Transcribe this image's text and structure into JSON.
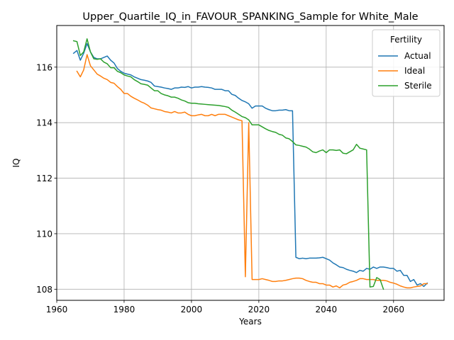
{
  "chart_data": {
    "type": "line",
    "title": "Upper_Quartile_IQ_in_FAVOUR_SPANKING_Sample for White_Male",
    "xlabel": "Years",
    "ylabel": "IQ",
    "xlim": [
      1960,
      2075
    ],
    "ylim": [
      107.6,
      117.5
    ],
    "xticks": [
      1960,
      1980,
      2000,
      2020,
      2040,
      2060
    ],
    "yticks": [
      108,
      110,
      112,
      114,
      116
    ],
    "grid": true,
    "legend": {
      "title": "Fertility",
      "placement": "top-right"
    },
    "series": [
      {
        "name": "Actual",
        "color": "#1f77b4",
        "points": [
          [
            1965,
            116.5
          ],
          [
            1966,
            116.6
          ],
          [
            1967,
            116.25
          ],
          [
            1968,
            116.5
          ],
          [
            1969,
            116.85
          ],
          [
            1970,
            116.55
          ],
          [
            1971,
            116.35
          ],
          [
            1972,
            116.3
          ],
          [
            1973,
            116.3
          ],
          [
            1974,
            116.35
          ],
          [
            1975,
            116.4
          ],
          [
            1976,
            116.25
          ],
          [
            1977,
            116.15
          ],
          [
            1978,
            115.95
          ],
          [
            1979,
            115.85
          ],
          [
            1980,
            115.78
          ],
          [
            1981,
            115.75
          ],
          [
            1982,
            115.72
          ],
          [
            1983,
            115.65
          ],
          [
            1984,
            115.6
          ],
          [
            1985,
            115.55
          ],
          [
            1986,
            115.53
          ],
          [
            1987,
            115.5
          ],
          [
            1988,
            115.45
          ],
          [
            1989,
            115.32
          ],
          [
            1990,
            115.3
          ],
          [
            1991,
            115.28
          ],
          [
            1992,
            115.25
          ],
          [
            1993,
            115.23
          ],
          [
            1994,
            115.2
          ],
          [
            1995,
            115.25
          ],
          [
            1996,
            115.25
          ],
          [
            1997,
            115.28
          ],
          [
            1998,
            115.27
          ],
          [
            1999,
            115.3
          ],
          [
            2000,
            115.25
          ],
          [
            2001,
            115.28
          ],
          [
            2002,
            115.28
          ],
          [
            2003,
            115.3
          ],
          [
            2004,
            115.28
          ],
          [
            2005,
            115.27
          ],
          [
            2006,
            115.25
          ],
          [
            2007,
            115.2
          ],
          [
            2008,
            115.2
          ],
          [
            2009,
            115.2
          ],
          [
            2010,
            115.15
          ],
          [
            2011,
            115.15
          ],
          [
            2012,
            115.02
          ],
          [
            2013,
            114.98
          ],
          [
            2014,
            114.88
          ],
          [
            2015,
            114.8
          ],
          [
            2016,
            114.75
          ],
          [
            2017,
            114.68
          ],
          [
            2018,
            114.52
          ],
          [
            2019,
            114.6
          ],
          [
            2020,
            114.6
          ],
          [
            2021,
            114.6
          ],
          [
            2022,
            114.52
          ],
          [
            2023,
            114.47
          ],
          [
            2024,
            114.43
          ],
          [
            2025,
            114.43
          ],
          [
            2026,
            114.45
          ],
          [
            2027,
            114.45
          ],
          [
            2028,
            114.47
          ],
          [
            2029,
            114.43
          ],
          [
            2030,
            114.43
          ],
          [
            2031,
            109.15
          ],
          [
            2032,
            109.1
          ],
          [
            2033,
            109.12
          ],
          [
            2034,
            109.1
          ],
          [
            2035,
            109.12
          ],
          [
            2036,
            109.12
          ],
          [
            2037,
            109.12
          ],
          [
            2038,
            109.13
          ],
          [
            2039,
            109.15
          ],
          [
            2040,
            109.1
          ],
          [
            2041,
            109.05
          ],
          [
            2042,
            108.95
          ],
          [
            2043,
            108.88
          ],
          [
            2044,
            108.8
          ],
          [
            2045,
            108.78
          ],
          [
            2046,
            108.72
          ],
          [
            2047,
            108.68
          ],
          [
            2048,
            108.65
          ],
          [
            2049,
            108.6
          ],
          [
            2050,
            108.68
          ],
          [
            2051,
            108.65
          ],
          [
            2052,
            108.75
          ],
          [
            2053,
            108.72
          ],
          [
            2054,
            108.8
          ],
          [
            2055,
            108.75
          ],
          [
            2056,
            108.8
          ],
          [
            2057,
            108.8
          ],
          [
            2058,
            108.78
          ],
          [
            2059,
            108.75
          ],
          [
            2060,
            108.75
          ],
          [
            2061,
            108.65
          ],
          [
            2062,
            108.68
          ],
          [
            2063,
            108.5
          ],
          [
            2064,
            108.5
          ],
          [
            2065,
            108.28
          ],
          [
            2066,
            108.35
          ],
          [
            2067,
            108.15
          ],
          [
            2068,
            108.2
          ],
          [
            2069,
            108.1
          ],
          [
            2070,
            108.22
          ]
        ]
      },
      {
        "name": "Ideal",
        "color": "#ff7f0e",
        "points": [
          [
            1966,
            115.85
          ],
          [
            1967,
            115.65
          ],
          [
            1968,
            115.9
          ],
          [
            1969,
            116.45
          ],
          [
            1970,
            116.05
          ],
          [
            1971,
            115.9
          ],
          [
            1972,
            115.75
          ],
          [
            1973,
            115.68
          ],
          [
            1974,
            115.6
          ],
          [
            1975,
            115.55
          ],
          [
            1976,
            115.45
          ],
          [
            1977,
            115.42
          ],
          [
            1978,
            115.3
          ],
          [
            1979,
            115.2
          ],
          [
            1980,
            115.05
          ],
          [
            1981,
            115.05
          ],
          [
            1982,
            114.95
          ],
          [
            1983,
            114.88
          ],
          [
            1984,
            114.82
          ],
          [
            1985,
            114.75
          ],
          [
            1986,
            114.7
          ],
          [
            1987,
            114.63
          ],
          [
            1988,
            114.53
          ],
          [
            1989,
            114.5
          ],
          [
            1990,
            114.47
          ],
          [
            1991,
            114.45
          ],
          [
            1992,
            114.4
          ],
          [
            1993,
            114.38
          ],
          [
            1994,
            114.35
          ],
          [
            1995,
            114.4
          ],
          [
            1996,
            114.35
          ],
          [
            1997,
            114.35
          ],
          [
            1998,
            114.38
          ],
          [
            1999,
            114.3
          ],
          [
            2000,
            114.25
          ],
          [
            2001,
            114.25
          ],
          [
            2002,
            114.28
          ],
          [
            2003,
            114.3
          ],
          [
            2004,
            114.25
          ],
          [
            2005,
            114.25
          ],
          [
            2006,
            114.3
          ],
          [
            2007,
            114.25
          ],
          [
            2008,
            114.3
          ],
          [
            2009,
            114.3
          ],
          [
            2010,
            114.3
          ],
          [
            2011,
            114.25
          ],
          [
            2012,
            114.2
          ],
          [
            2013,
            114.15
          ],
          [
            2014,
            114.1
          ],
          [
            2015,
            114.07
          ],
          [
            2016,
            108.45
          ],
          [
            2017,
            114.0
          ],
          [
            2018,
            108.35
          ],
          [
            2019,
            108.35
          ],
          [
            2020,
            108.35
          ],
          [
            2021,
            108.38
          ],
          [
            2022,
            108.35
          ],
          [
            2023,
            108.32
          ],
          [
            2024,
            108.28
          ],
          [
            2025,
            108.28
          ],
          [
            2026,
            108.3
          ],
          [
            2027,
            108.3
          ],
          [
            2028,
            108.32
          ],
          [
            2029,
            108.35
          ],
          [
            2030,
            108.38
          ],
          [
            2031,
            108.4
          ],
          [
            2032,
            108.4
          ],
          [
            2033,
            108.38
          ],
          [
            2034,
            108.32
          ],
          [
            2035,
            108.28
          ],
          [
            2036,
            108.25
          ],
          [
            2037,
            108.25
          ],
          [
            2038,
            108.2
          ],
          [
            2039,
            108.2
          ],
          [
            2040,
            108.15
          ],
          [
            2041,
            108.15
          ],
          [
            2042,
            108.08
          ],
          [
            2043,
            108.12
          ],
          [
            2044,
            108.05
          ],
          [
            2045,
            108.15
          ],
          [
            2046,
            108.18
          ],
          [
            2047,
            108.25
          ],
          [
            2048,
            108.28
          ],
          [
            2049,
            108.32
          ],
          [
            2050,
            108.38
          ],
          [
            2051,
            108.38
          ],
          [
            2052,
            108.35
          ],
          [
            2053,
            108.35
          ],
          [
            2054,
            108.35
          ],
          [
            2055,
            108.32
          ],
          [
            2056,
            108.32
          ],
          [
            2057,
            108.32
          ],
          [
            2058,
            108.3
          ],
          [
            2059,
            108.25
          ],
          [
            2060,
            108.22
          ],
          [
            2061,
            108.18
          ],
          [
            2062,
            108.12
          ],
          [
            2063,
            108.08
          ],
          [
            2064,
            108.05
          ],
          [
            2065,
            108.05
          ],
          [
            2066,
            108.08
          ],
          [
            2067,
            108.1
          ],
          [
            2068,
            108.12
          ],
          [
            2069,
            108.2
          ],
          [
            2070,
            108.2
          ]
        ]
      },
      {
        "name": "Sterile",
        "color": "#2ca02c",
        "points": [
          [
            1965,
            116.95
          ],
          [
            1966,
            116.92
          ],
          [
            1967,
            116.42
          ],
          [
            1968,
            116.55
          ],
          [
            1969,
            117.02
          ],
          [
            1970,
            116.55
          ],
          [
            1971,
            116.3
          ],
          [
            1972,
            116.28
          ],
          [
            1973,
            116.3
          ],
          [
            1974,
            116.18
          ],
          [
            1975,
            116.12
          ],
          [
            1976,
            115.98
          ],
          [
            1977,
            115.98
          ],
          [
            1978,
            115.85
          ],
          [
            1979,
            115.8
          ],
          [
            1980,
            115.72
          ],
          [
            1981,
            115.68
          ],
          [
            1982,
            115.65
          ],
          [
            1983,
            115.55
          ],
          [
            1984,
            115.48
          ],
          [
            1985,
            115.4
          ],
          [
            1986,
            115.38
          ],
          [
            1987,
            115.35
          ],
          [
            1988,
            115.25
          ],
          [
            1989,
            115.15
          ],
          [
            1990,
            115.15
          ],
          [
            1991,
            115.05
          ],
          [
            1992,
            115.0
          ],
          [
            1993,
            114.97
          ],
          [
            1994,
            114.92
          ],
          [
            1995,
            114.92
          ],
          [
            1996,
            114.88
          ],
          [
            1997,
            114.82
          ],
          [
            1998,
            114.78
          ],
          [
            1999,
            114.72
          ],
          [
            2000,
            114.7
          ],
          [
            2001,
            114.7
          ],
          [
            2002,
            114.68
          ],
          [
            2003,
            114.67
          ],
          [
            2004,
            114.66
          ],
          [
            2005,
            114.65
          ],
          [
            2006,
            114.64
          ],
          [
            2007,
            114.63
          ],
          [
            2008,
            114.62
          ],
          [
            2009,
            114.6
          ],
          [
            2010,
            114.58
          ],
          [
            2011,
            114.55
          ],
          [
            2012,
            114.45
          ],
          [
            2013,
            114.38
          ],
          [
            2014,
            114.3
          ],
          [
            2015,
            114.22
          ],
          [
            2016,
            114.18
          ],
          [
            2017,
            114.1
          ],
          [
            2018,
            113.92
          ],
          [
            2019,
            113.92
          ],
          [
            2020,
            113.92
          ],
          [
            2021,
            113.85
          ],
          [
            2022,
            113.78
          ],
          [
            2023,
            113.72
          ],
          [
            2024,
            113.68
          ],
          [
            2025,
            113.65
          ],
          [
            2026,
            113.58
          ],
          [
            2027,
            113.55
          ],
          [
            2028,
            113.45
          ],
          [
            2029,
            113.42
          ],
          [
            2030,
            113.32
          ],
          [
            2031,
            113.2
          ],
          [
            2032,
            113.18
          ],
          [
            2033,
            113.15
          ],
          [
            2034,
            113.12
          ],
          [
            2035,
            113.05
          ],
          [
            2036,
            112.95
          ],
          [
            2037,
            112.92
          ],
          [
            2038,
            112.98
          ],
          [
            2039,
            113.02
          ],
          [
            2040,
            112.92
          ],
          [
            2041,
            113.02
          ],
          [
            2042,
            113.02
          ],
          [
            2043,
            113.0
          ],
          [
            2044,
            113.02
          ],
          [
            2045,
            112.9
          ],
          [
            2046,
            112.88
          ],
          [
            2047,
            112.95
          ],
          [
            2048,
            113.02
          ],
          [
            2049,
            113.22
          ],
          [
            2050,
            113.08
          ],
          [
            2051,
            113.05
          ],
          [
            2052,
            113.02
          ],
          [
            2053,
            108.08
          ],
          [
            2054,
            108.1
          ],
          [
            2055,
            108.42
          ],
          [
            2056,
            108.35
          ],
          [
            2057,
            108.0
          ]
        ]
      }
    ]
  }
}
